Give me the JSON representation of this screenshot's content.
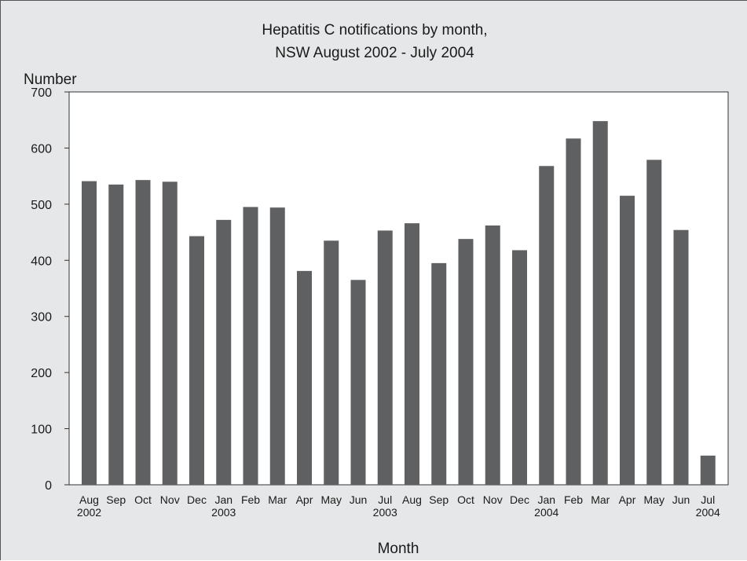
{
  "chart_data": {
    "type": "bar",
    "title": [
      "Hepatitis C notifications by month,",
      "NSW August 2002 - July 2004"
    ],
    "xlabel": "Month",
    "ylabel": "Number",
    "ylim": [
      0,
      700
    ],
    "yticks": [
      0,
      100,
      200,
      300,
      400,
      500,
      600,
      700
    ],
    "grid": false,
    "categories": [
      {
        "month": "Aug",
        "year": "2002"
      },
      {
        "month": "Sep",
        "year": ""
      },
      {
        "month": "Oct",
        "year": ""
      },
      {
        "month": "Nov",
        "year": ""
      },
      {
        "month": "Dec",
        "year": ""
      },
      {
        "month": "Jan",
        "year": "2003"
      },
      {
        "month": "Feb",
        "year": ""
      },
      {
        "month": "Mar",
        "year": ""
      },
      {
        "month": "Apr",
        "year": ""
      },
      {
        "month": "May",
        "year": ""
      },
      {
        "month": "Jun",
        "year": ""
      },
      {
        "month": "Jul",
        "year": "2003"
      },
      {
        "month": "Aug",
        "year": ""
      },
      {
        "month": "Sep",
        "year": ""
      },
      {
        "month": "Oct",
        "year": ""
      },
      {
        "month": "Nov",
        "year": ""
      },
      {
        "month": "Dec",
        "year": ""
      },
      {
        "month": "Jan",
        "year": "2004"
      },
      {
        "month": "Feb",
        "year": ""
      },
      {
        "month": "Mar",
        "year": ""
      },
      {
        "month": "Apr",
        "year": ""
      },
      {
        "month": "May",
        "year": ""
      },
      {
        "month": "Jun",
        "year": ""
      },
      {
        "month": "Jul",
        "year": "2004"
      }
    ],
    "values": [
      541,
      535,
      543,
      540,
      443,
      472,
      495,
      494,
      381,
      435,
      365,
      453,
      466,
      395,
      438,
      462,
      418,
      568,
      617,
      648,
      515,
      579,
      454,
      52
    ],
    "colors": {
      "bar": "#5f6062",
      "plot_bg": "#ffffff",
      "frame_bg": "#e6e7e8",
      "axis": "#333333"
    }
  }
}
